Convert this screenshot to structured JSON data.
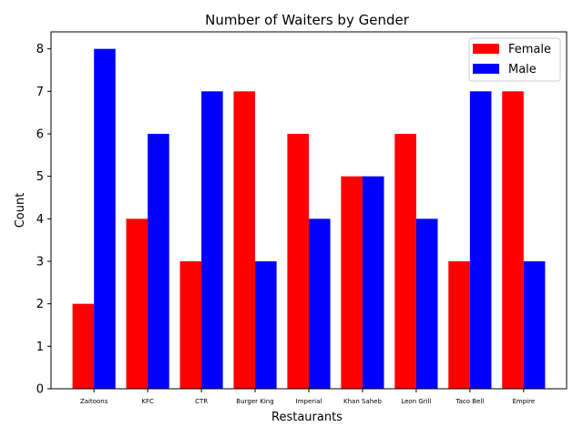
{
  "chart_data": {
    "type": "bar",
    "title": "Number of Waiters by Gender",
    "xlabel": "Restaurants",
    "ylabel": "Count",
    "categories": [
      "Zaitoons",
      "KFC",
      "CTR",
      "Burger King",
      "Imperial",
      "Khan Saheb",
      "Leon Grill",
      "Taco Bell",
      "Empire"
    ],
    "series": [
      {
        "name": "Female",
        "color": "#ff0000",
        "values": [
          2,
          4,
          3,
          7,
          6,
          5,
          6,
          3,
          7
        ]
      },
      {
        "name": "Male",
        "color": "#0000ff",
        "values": [
          8,
          6,
          7,
          3,
          4,
          5,
          4,
          7,
          3
        ]
      }
    ],
    "ylim": [
      0,
      8.4
    ],
    "yticks": [
      0,
      1,
      2,
      3,
      4,
      5,
      6,
      7,
      8
    ],
    "grid": false,
    "legend_position": "top-right"
  }
}
